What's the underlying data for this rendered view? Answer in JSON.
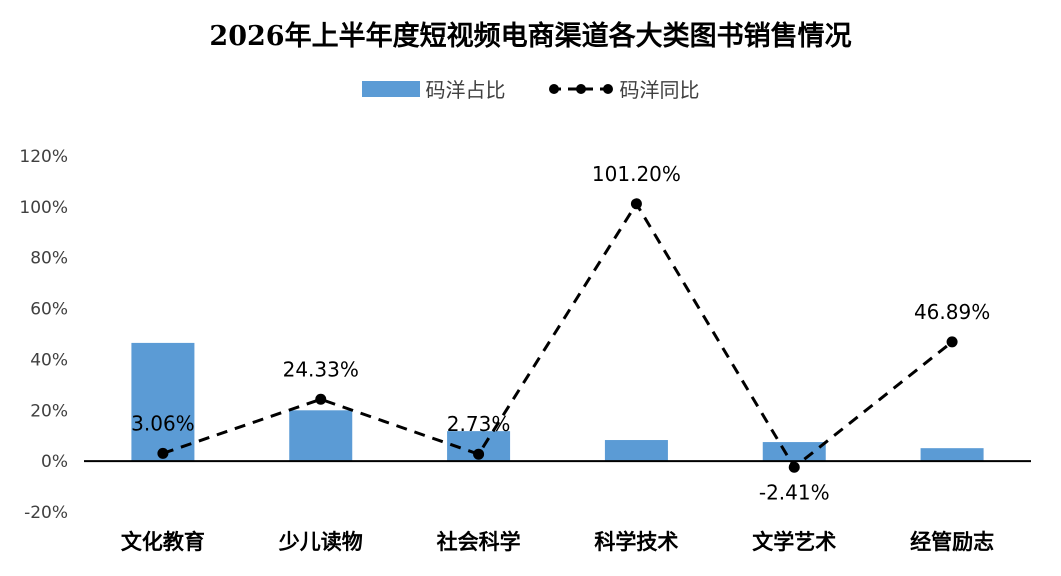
{
  "chart_data": {
    "type": "bar+line",
    "title": "2026年上半年度短视频电商渠道各大类图书销售情况",
    "categories": [
      "文化教育",
      "少儿读物",
      "社会科学",
      "科学技术",
      "文学艺术",
      "经管励志"
    ],
    "series": [
      {
        "name": "码洋占比",
        "type": "bar",
        "color": "#5B9BD5",
        "values": [
          46.5,
          20.0,
          11.8,
          8.3,
          7.5,
          5.1
        ]
      },
      {
        "name": "码洋同比",
        "type": "line",
        "style": "dashed",
        "color": "#000000",
        "values": [
          3.06,
          24.33,
          2.73,
          101.2,
          -2.41,
          46.89
        ],
        "labels": [
          "3.06%",
          "24.33%",
          "2.73%",
          "101.20%",
          "-2.41%",
          "46.89%"
        ]
      }
    ],
    "ylim": [
      -20,
      120
    ],
    "yticks": [
      -20,
      0,
      20,
      40,
      60,
      80,
      100,
      120
    ],
    "ytick_labels": [
      "-20%",
      "0%",
      "20%",
      "40%",
      "60%",
      "80%",
      "100%",
      "120%"
    ],
    "grid": false,
    "legend_position": "top-center"
  }
}
